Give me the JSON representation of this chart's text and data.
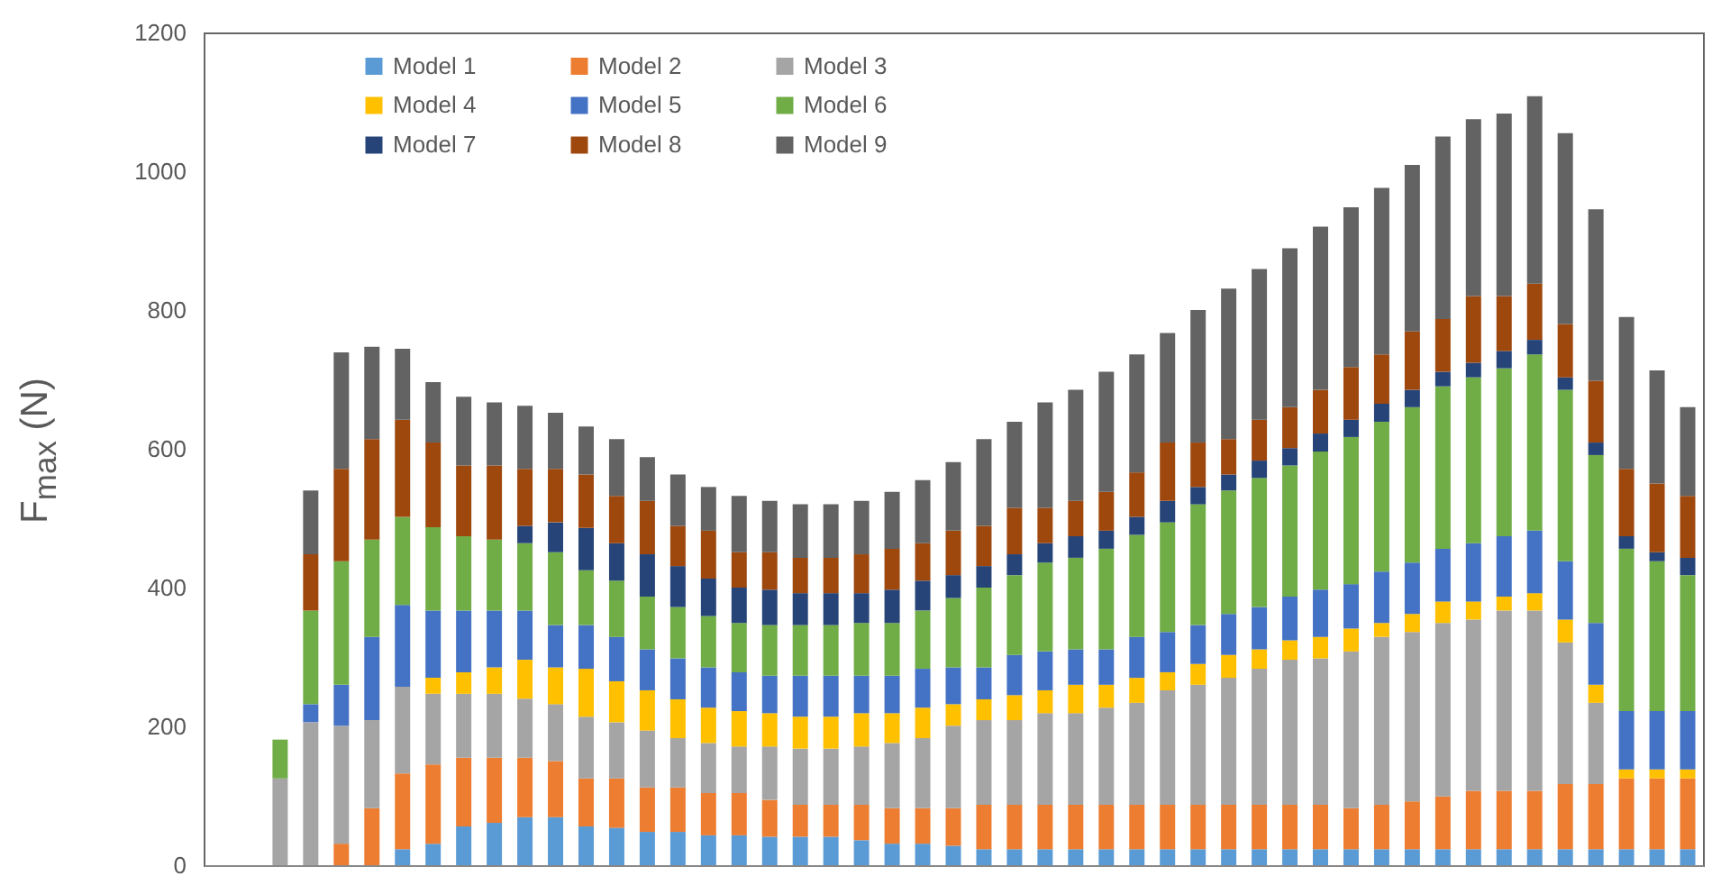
{
  "chart_data": {
    "type": "bar",
    "stacked": true,
    "ylabel": "F$_{max}$ (N)",
    "categories": [
      null,
      null,
      null,
      null,
      null,
      null,
      null,
      null,
      null,
      null,
      null,
      null,
      null,
      null,
      null,
      null,
      null,
      null,
      null,
      null,
      null,
      null,
      null,
      null,
      null,
      null,
      null,
      null,
      null,
      null,
      null,
      null,
      null,
      null,
      null,
      null,
      null,
      null,
      null,
      null,
      null,
      null,
      null,
      null,
      null,
      null,
      null,
      null,
      null
    ],
    "ylim": [
      0,
      1200
    ],
    "yticks": [
      0,
      200,
      400,
      600,
      800,
      1000,
      1200
    ],
    "legend": "top",
    "tick_labels": "y",
    "series": [
      {
        "name": "Model 1",
        "color": "#5b9bd5",
        "values": [
          null,
          null,
          0,
          0,
          0,
          0,
          23,
          31,
          56,
          61,
          69,
          69,
          56,
          54,
          48,
          48,
          43,
          43,
          41,
          41,
          41,
          36,
          31,
          31,
          28,
          23,
          23,
          23,
          23,
          23,
          23,
          23,
          23,
          23,
          23,
          23,
          23,
          23,
          23,
          23,
          23,
          23,
          23,
          23,
          23,
          23,
          23,
          23,
          23
        ]
      },
      {
        "name": "Model 2",
        "color": "#ed7d31",
        "values": [
          null,
          null,
          0,
          0,
          31,
          82,
          109,
          114,
          99,
          94,
          86,
          81,
          69,
          71,
          64,
          64,
          61,
          61,
          53,
          46,
          46,
          51,
          51,
          51,
          54,
          64,
          64,
          64,
          64,
          64,
          64,
          64,
          64,
          64,
          64,
          64,
          64,
          59,
          64,
          69,
          76,
          84,
          84,
          84,
          94,
          94,
          102,
          102,
          102
        ]
      },
      {
        "name": "Model 3",
        "color": "#a5a5a5",
        "values": [
          null,
          null,
          125,
          206,
          170,
          127,
          125,
          102,
          92,
          92,
          85,
          82,
          89,
          81,
          82,
          71,
          72,
          67,
          77,
          81,
          81,
          84,
          94,
          101,
          119,
          122,
          122,
          132,
          132,
          140,
          147,
          165,
          173,
          183,
          196,
          209,
          211,
          226,
          242,
          244,
          250,
          247,
          260,
          260,
          204,
          117,
          0,
          0,
          0
        ]
      },
      {
        "name": "Model 4",
        "color": "#ffc000",
        "values": [
          null,
          null,
          0,
          0,
          0,
          0,
          0,
          23,
          31,
          38,
          56,
          53,
          69,
          59,
          58,
          56,
          51,
          51,
          48,
          46,
          46,
          48,
          43,
          44,
          31,
          30,
          36,
          33,
          41,
          33,
          36,
          26,
          30,
          33,
          28,
          28,
          31,
          33,
          20,
          26,
          31,
          26,
          20,
          25,
          33,
          26,
          13,
          13,
          13
        ]
      },
      {
        "name": "Model 5",
        "color": "#4472c4",
        "values": [
          null,
          null,
          0,
          26,
          59,
          120,
          118,
          97,
          89,
          82,
          71,
          61,
          63,
          64,
          59,
          59,
          58,
          56,
          54,
          59,
          59,
          54,
          54,
          56,
          53,
          46,
          58,
          56,
          51,
          51,
          59,
          58,
          56,
          59,
          61,
          63,
          68,
          64,
          74,
          74,
          76,
          84,
          87,
          90,
          84,
          89,
          84,
          84,
          84
        ]
      },
      {
        "name": "Model 6",
        "color": "#70ad47",
        "values": [
          null,
          null,
          56,
          135,
          178,
          140,
          127,
          120,
          107,
          102,
          97,
          105,
          79,
          81,
          76,
          74,
          74,
          71,
          73,
          73,
          73,
          76,
          76,
          84,
          100,
          115,
          115,
          128,
          132,
          145,
          147,
          158,
          174,
          178,
          186,
          189,
          199,
          212,
          216,
          224,
          234,
          239,
          242,
          254,
          247,
          242,
          234,
          216,
          196
        ]
      },
      {
        "name": "Model 7",
        "color": "#264478",
        "values": [
          null,
          null,
          0,
          0,
          0,
          0,
          0,
          0,
          0,
          0,
          25,
          43,
          61,
          54,
          61,
          59,
          54,
          51,
          51,
          46,
          46,
          43,
          48,
          43,
          33,
          31,
          30,
          28,
          31,
          26,
          26,
          31,
          25,
          23,
          25,
          25,
          26,
          25,
          26,
          25,
          21,
          21,
          25,
          21,
          18,
          18,
          18,
          13,
          25
        ]
      },
      {
        "name": "Model 8",
        "color": "#9e480e",
        "values": [
          null,
          null,
          0,
          81,
          133,
          145,
          140,
          122,
          102,
          107,
          82,
          77,
          77,
          68,
          77,
          58,
          69,
          51,
          54,
          51,
          51,
          56,
          59,
          54,
          64,
          58,
          67,
          51,
          51,
          56,
          64,
          84,
          64,
          51,
          59,
          59,
          63,
          76,
          71,
          84,
          76,
          96,
          79,
          81,
          77,
          89,
          97,
          99,
          89
        ]
      },
      {
        "name": "Model 9",
        "color": "#636363",
        "values": [
          null,
          null,
          0,
          92,
          168,
          133,
          102,
          87,
          99,
          91,
          91,
          81,
          69,
          82,
          63,
          74,
          63,
          81,
          74,
          77,
          77,
          77,
          82,
          91,
          99,
          125,
          124,
          152,
          160,
          173,
          170,
          158,
          191,
          217,
          217,
          229,
          235,
          230,
          240,
          240,
          263,
          255,
          263,
          270,
          275,
          247,
          219,
          163,
          128
        ]
      }
    ]
  }
}
